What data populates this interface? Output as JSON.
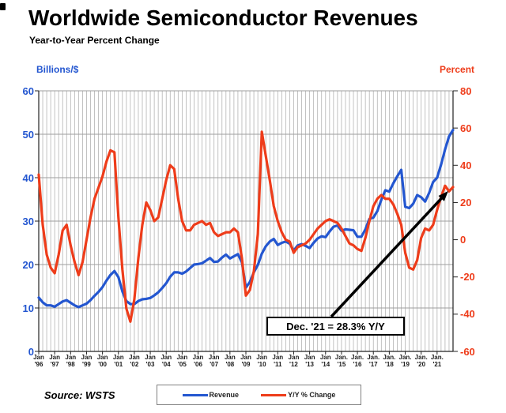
{
  "page": {
    "title": "Worldwide Semiconductor Revenues",
    "subtitle": "Year-to-Year Percent Change",
    "source": "Source: WSTS"
  },
  "chart_data": {
    "type": "line",
    "title": "Worldwide Semiconductor Revenues",
    "subtitle": "Year-to-Year Percent Change",
    "source": "Source: WSTS",
    "grid": {
      "vertical": "quarterly",
      "horizontal": "left axis every 10"
    },
    "left_axis": {
      "title": "Billions/$",
      "min": 0,
      "max": 60,
      "step": 10,
      "tick_labels": [
        "0",
        "10",
        "20",
        "30",
        "40",
        "50",
        "60"
      ],
      "color": "#2356d0"
    },
    "right_axis": {
      "title": "Percent",
      "min": -60,
      "max": 80,
      "step": 20,
      "tick_labels": [
        "-60",
        "-40",
        "-20",
        "0",
        "20",
        "40",
        "60",
        "80"
      ],
      "color": "#ee3c1a"
    },
    "x_axis": {
      "tick_labels": [
        "Jan '96",
        "Jan '97",
        "Jan '98",
        "Jan '99",
        "Jan '00",
        "Jan '01",
        "Jan '02",
        "Jan '03",
        "Jan '04",
        "Jan '05",
        "Jan '06",
        "Jan '07",
        "Jan '08",
        "Jan '09",
        "Jan '10",
        "Jan '11",
        "Jan '12",
        "Jan '13",
        "Jan '14",
        "Jan. '15",
        "Jan. '16",
        "Jan. '17",
        "Jan. '18",
        "Jan. '19",
        "Jan. '20",
        "Jan. '21"
      ]
    },
    "x_start_year": 1996,
    "x_step_years": 0.25,
    "series": [
      {
        "name": "Revenue",
        "axis": "left",
        "units": "billions of dollars per month",
        "color": "#2356d0",
        "values": [
          12.4,
          11.3,
          10.6,
          10.6,
          10.3,
          10.9,
          11.5,
          11.8,
          11.2,
          10.6,
          10.2,
          10.6,
          11.0,
          11.8,
          12.8,
          13.7,
          14.8,
          16.3,
          17.6,
          18.5,
          17.1,
          13.8,
          11.6,
          10.9,
          10.9,
          11.6,
          12.0,
          12.1,
          12.3,
          12.9,
          13.6,
          14.6,
          15.7,
          17.2,
          18.2,
          18.2,
          17.9,
          18.4,
          19.2,
          20.0,
          20.1,
          20.3,
          20.9,
          21.5,
          20.6,
          20.7,
          21.6,
          22.3,
          21.4,
          21.9,
          22.4,
          20.5,
          14.7,
          16.0,
          18.2,
          19.9,
          22.5,
          24.2,
          25.3,
          25.9,
          24.5,
          25.0,
          25.3,
          24.8,
          23.2,
          24.4,
          24.7,
          24.3,
          23.8,
          25.0,
          26.0,
          26.5,
          26.3,
          27.6,
          28.7,
          29.0,
          27.8,
          28.1,
          28.0,
          27.9,
          26.4,
          26.4,
          28.1,
          30.5,
          30.8,
          32.3,
          34.9,
          37.1,
          36.8,
          38.7,
          40.3,
          41.8,
          33.3,
          33.0,
          34.0,
          36.0,
          35.5,
          34.5,
          36.5,
          39.0,
          40.0,
          43.0,
          46.5,
          49.5,
          51.0
        ]
      },
      {
        "name": "Y/Y % Change",
        "axis": "right",
        "units": "percent",
        "color": "#ee3c1a",
        "values": [
          35,
          8,
          -8,
          -15,
          -18,
          -8,
          5,
          8,
          -3,
          -12,
          -19,
          -12,
          0,
          12,
          22,
          28,
          34,
          42,
          48,
          47,
          12,
          -16,
          -37,
          -44,
          -32,
          -10,
          8,
          20,
          16,
          10,
          12,
          22,
          32,
          40,
          38,
          22,
          10,
          5,
          5,
          8,
          9,
          10,
          8,
          9,
          4,
          2,
          3,
          4,
          4,
          6,
          4,
          -10,
          -30,
          -27,
          -17,
          3,
          58,
          45,
          32,
          18,
          10,
          4,
          0,
          -1,
          -7,
          -4,
          -3,
          -2,
          0,
          3,
          6,
          8,
          10,
          11,
          10,
          9,
          6,
          2,
          -2,
          -3,
          -5,
          -6,
          1,
          10,
          18,
          22,
          24,
          22,
          22,
          19,
          14,
          8,
          -7,
          -15,
          -16,
          -11,
          1,
          6,
          5,
          8,
          16,
          23,
          29,
          26,
          28.3
        ]
      }
    ],
    "legend": {
      "position": "bottom-center",
      "entries": [
        "Revenue",
        "Y/Y % Change"
      ]
    },
    "annotation": {
      "label": "Dec. '21 = 28.3% Y/Y",
      "target_series": "Y/Y % Change",
      "target_point": "Dec 2021",
      "target_value_percent": 28.3
    }
  }
}
